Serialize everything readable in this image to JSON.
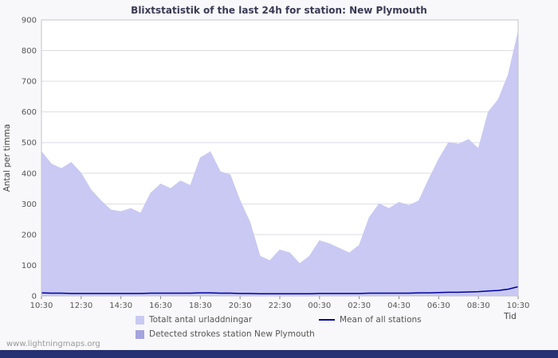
{
  "page": {
    "watermark": "www.lightningmaps.org"
  },
  "colors": {
    "total_area": "#c9c9f3",
    "detected_area": "#a3a3e0",
    "mean_line": "#0000a0",
    "grid": "#dcdce8",
    "plot_border": "#c4c4cc",
    "footer_bar": "#253172"
  },
  "chart_data": {
    "type": "area",
    "title": "Blixtstatistik of the last 24h for station: New Plymouth",
    "ylabel": "Antal per timma",
    "xlabel": "Tid",
    "ylim": [
      0,
      900
    ],
    "y_ticks": [
      0,
      100,
      200,
      300,
      400,
      500,
      600,
      700,
      800,
      900
    ],
    "x_ticks": [
      "10:30",
      "12:30",
      "14:30",
      "16:30",
      "18:30",
      "20:30",
      "22:30",
      "00:30",
      "02:30",
      "04:30",
      "06:30",
      "08:30",
      "10:30"
    ],
    "x_step_minutes": 30,
    "grid": true,
    "legend_position": "bottom",
    "series": [
      {
        "name": "Totalt antal urladdningar",
        "type": "area",
        "color": "#c9c9f3",
        "values": [
          470,
          430,
          415,
          435,
          400,
          345,
          310,
          280,
          275,
          285,
          270,
          335,
          365,
          350,
          375,
          360,
          450,
          470,
          405,
          395,
          310,
          240,
          130,
          115,
          150,
          140,
          105,
          130,
          180,
          170,
          155,
          140,
          165,
          255,
          300,
          285,
          305,
          295,
          310,
          380,
          445,
          500,
          495,
          510,
          480,
          600,
          640,
          720,
          860
        ]
      },
      {
        "name": "Detected strokes station New Plymouth",
        "type": "area",
        "color": "#a3a3e0",
        "values": [
          0,
          0,
          0,
          0,
          0,
          0,
          0,
          0,
          0,
          0,
          0,
          0,
          0,
          0,
          0,
          0,
          0,
          0,
          0,
          0,
          0,
          0,
          0,
          0,
          0,
          0,
          0,
          0,
          0,
          0,
          0,
          0,
          0,
          0,
          0,
          0,
          0,
          0,
          0,
          0,
          0,
          0,
          0,
          0,
          0,
          0,
          0,
          0,
          0
        ]
      },
      {
        "name": "Mean of all stations",
        "type": "line",
        "color": "#0000a0",
        "values": [
          10,
          9,
          9,
          8,
          8,
          8,
          8,
          8,
          8,
          8,
          8,
          9,
          9,
          9,
          9,
          9,
          10,
          10,
          9,
          9,
          8,
          8,
          7,
          7,
          7,
          7,
          7,
          7,
          8,
          8,
          8,
          8,
          8,
          9,
          9,
          9,
          9,
          9,
          10,
          10,
          11,
          12,
          12,
          13,
          14,
          16,
          18,
          22,
          30
        ]
      }
    ]
  }
}
